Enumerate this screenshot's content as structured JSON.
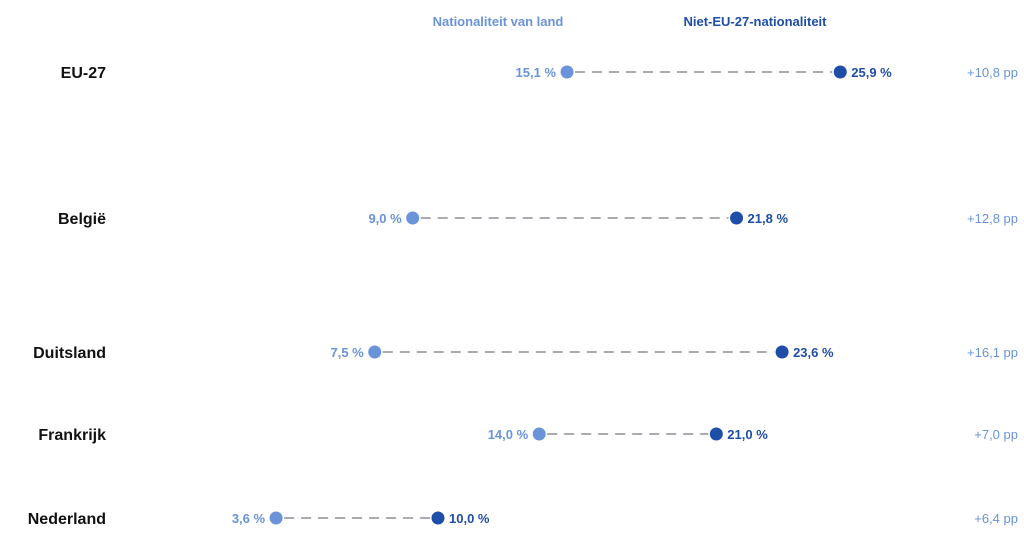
{
  "chart_data": {
    "type": "dumbbell",
    "series": [
      {
        "name": "Nationaliteit van land",
        "color": "#6a93d9"
      },
      {
        "name": "Niet-EU-27-nationaliteit",
        "color": "#1f4ea8"
      }
    ],
    "rows": [
      {
        "country": "EU-27",
        "national": 15.1,
        "non_eu": 25.9,
        "national_label": "15,1 %",
        "non_eu_label": "25,9 %",
        "diff_label": "+10,8 pp"
      },
      {
        "country": "België",
        "national": 9.0,
        "non_eu": 21.8,
        "national_label": "9,0 %",
        "non_eu_label": "21,8 %",
        "diff_label": "+12,8 pp"
      },
      {
        "country": "Duitsland",
        "national": 7.5,
        "non_eu": 23.6,
        "national_label": "7,5 %",
        "non_eu_label": "23,6 %",
        "diff_label": "+16,1 pp"
      },
      {
        "country": "Frankrijk",
        "national": 14.0,
        "non_eu": 21.0,
        "national_label": "14,0 %",
        "non_eu_label": "21,0 %",
        "diff_label": "+7,0 pp"
      },
      {
        "country": "Nederland",
        "national": 3.6,
        "non_eu": 10.0,
        "national_label": "3,6 %",
        "non_eu_label": "10,0 %",
        "diff_label": "+6,4 pp"
      }
    ],
    "xlim": [
      0,
      30
    ],
    "grid": false,
    "legend": "top"
  }
}
